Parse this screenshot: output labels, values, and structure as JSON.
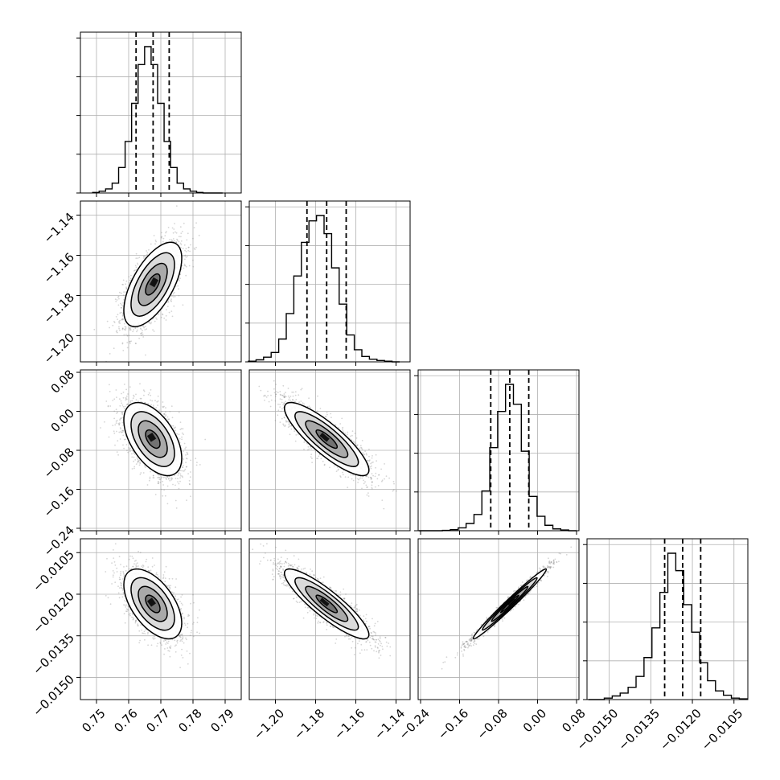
{
  "chart_data": {
    "type": "corner",
    "colors": {
      "hist": "#000000",
      "scatter": "#888888",
      "grid": "#b0b0b0",
      "frame": "#000000"
    },
    "grid": true,
    "quantiles": [
      0.16,
      0.5,
      0.84
    ],
    "parameters": [
      {
        "id": "p0",
        "range": [
          0.745,
          0.795
        ],
        "ticks": [
          0.75,
          0.76,
          0.77,
          0.78,
          0.79
        ],
        "tick_labels": [
          "0.75",
          "0.76",
          "0.77",
          "0.78",
          "0.79"
        ],
        "mean": 0.7675,
        "sd": 0.0045
      },
      {
        "id": "p1",
        "range": [
          -1.213,
          -1.133
        ],
        "ticks": [
          -1.2,
          -1.18,
          -1.16,
          -1.14
        ],
        "tick_labels": [
          "−1.20",
          "−1.18",
          "−1.16",
          "−1.14"
        ],
        "mean": -1.1745,
        "sd": 0.0105
      },
      {
        "id": "p2",
        "range": [
          -0.245,
          0.085
        ],
        "ticks": [
          -0.24,
          -0.16,
          -0.08,
          0.0,
          0.08
        ],
        "tick_labels": [
          "−0.24",
          "−0.16",
          "−0.08",
          "0.00",
          "0.08"
        ],
        "mean": -0.057,
        "sd": 0.0375
      },
      {
        "id": "p3",
        "range": [
          -0.0158,
          -0.01
        ],
        "ticks": [
          -0.015,
          -0.0135,
          -0.012,
          -0.0105
        ],
        "tick_labels": [
          "−0.0150",
          "−0.0135",
          "−0.0120",
          "−0.0105"
        ],
        "mean": -0.01235,
        "sd": 0.00063
      }
    ],
    "histograms": [
      {
        "param": "p0",
        "bins": 20,
        "range": [
          0.7488,
          0.7892
        ],
        "counts": [
          1,
          3,
          7,
          17,
          44,
          89,
          155,
          222,
          253,
          222,
          155,
          89,
          44,
          17,
          7,
          3,
          1,
          0,
          0,
          0
        ],
        "quantile_values": [
          0.7623,
          0.7676,
          0.7726
        ]
      },
      {
        "param": "p1",
        "bins": 20,
        "range": [
          -1.2134,
          -1.1382
        ],
        "counts": [
          1,
          3,
          7,
          14,
          34,
          72,
          128,
          178,
          210,
          218,
          191,
          140,
          86,
          40,
          18,
          8,
          4,
          2,
          1,
          0
        ],
        "quantile_values": [
          -1.1843,
          -1.1745,
          -1.1648
        ]
      },
      {
        "param": "p2",
        "bins": 20,
        "range": [
          -0.2437,
          0.08
        ],
        "counts": [
          0,
          0,
          0,
          1,
          3,
          8,
          20,
          45,
          110,
          230,
          330,
          405,
          350,
          220,
          95,
          40,
          15,
          5,
          2,
          0
        ],
        "quantile_values": [
          -0.096,
          -0.057,
          -0.018
        ]
      },
      {
        "param": "p3",
        "bins": 20,
        "range": [
          -0.01575,
          -0.01002
        ],
        "counts": [
          0,
          0,
          2,
          5,
          9,
          17,
          32,
          58,
          99,
          148,
          202,
          178,
          131,
          93,
          51,
          26,
          12,
          6,
          2,
          1
        ],
        "quantile_values": [
          -0.013,
          -0.01235,
          -0.0117
        ]
      }
    ],
    "pairs": [
      {
        "x": "p0",
        "y": "p1",
        "correlation": 0.62
      },
      {
        "x": "p0",
        "y": "p2",
        "correlation": -0.52
      },
      {
        "x": "p1",
        "y": "p2",
        "correlation": -0.85
      },
      {
        "x": "p0",
        "y": "p3",
        "correlation": -0.55
      },
      {
        "x": "p1",
        "y": "p3",
        "correlation": -0.88
      },
      {
        "x": "p2",
        "y": "p3",
        "correlation": 0.985
      }
    ],
    "contour_levels_sigma": [
      0.5,
      1.0,
      1.5,
      2.0
    ]
  }
}
